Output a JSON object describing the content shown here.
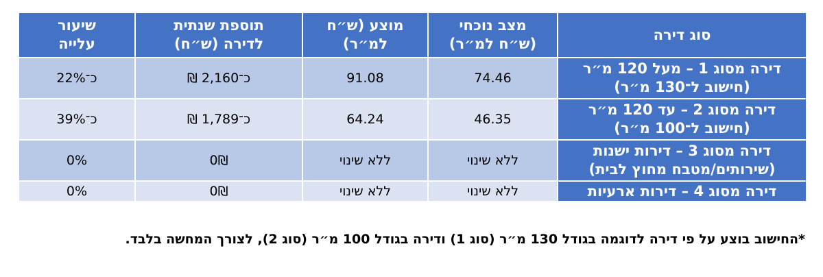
{
  "table": {
    "headers": {
      "type": "סוג דירה",
      "current": "מצב נוכחי\n(ש״ח למ״ר)",
      "proposed": "מוצע (ש״ח\nלמ״ר)",
      "annual_addition": "תוספת שנתית\nלדירה (ש״ח)",
      "increase_rate": "שיעור\nעלייה"
    },
    "rows": [
      {
        "type": "דירה מסוג 1 – מעל 120 מ״ר\n(חישוב ל־130 מ״ר)",
        "current": "74.46",
        "proposed": "91.08",
        "annual_addition": "כ־2,160 ₪",
        "increase_rate": "כ־22%"
      },
      {
        "type": "דירה מסוג 2 – עד 120 מ״ר\n(חישוב ל־100 מ״ר)",
        "current": "46.35",
        "proposed": "64.24",
        "annual_addition": "כ־1,789 ₪",
        "increase_rate": "כ־39%"
      },
      {
        "type": "דירה מסוג 3 – דירות ישנות\n(שירותים/מטבח מחוץ לבית)",
        "current": "ללא שינוי",
        "proposed": "ללא שינוי",
        "annual_addition": "0₪",
        "increase_rate": "0%"
      },
      {
        "type": "דירה מסוג 4 – דירות ארעיות",
        "current": "ללא שינוי",
        "proposed": "ללא שינוי",
        "annual_addition": "0₪",
        "increase_rate": "0%"
      }
    ]
  },
  "footnote": "*החישוב בוצע על פי דירה לדוגמה בגודל 130 מ״ר (סוג 1) ודירה בגודל 100 מ״ר (סוג 2), לצורך המחשה בלבד.",
  "colors": {
    "header_blue": "#4472c4",
    "row_dark": "#b8c8e7",
    "row_light": "#dbe3f3"
  }
}
